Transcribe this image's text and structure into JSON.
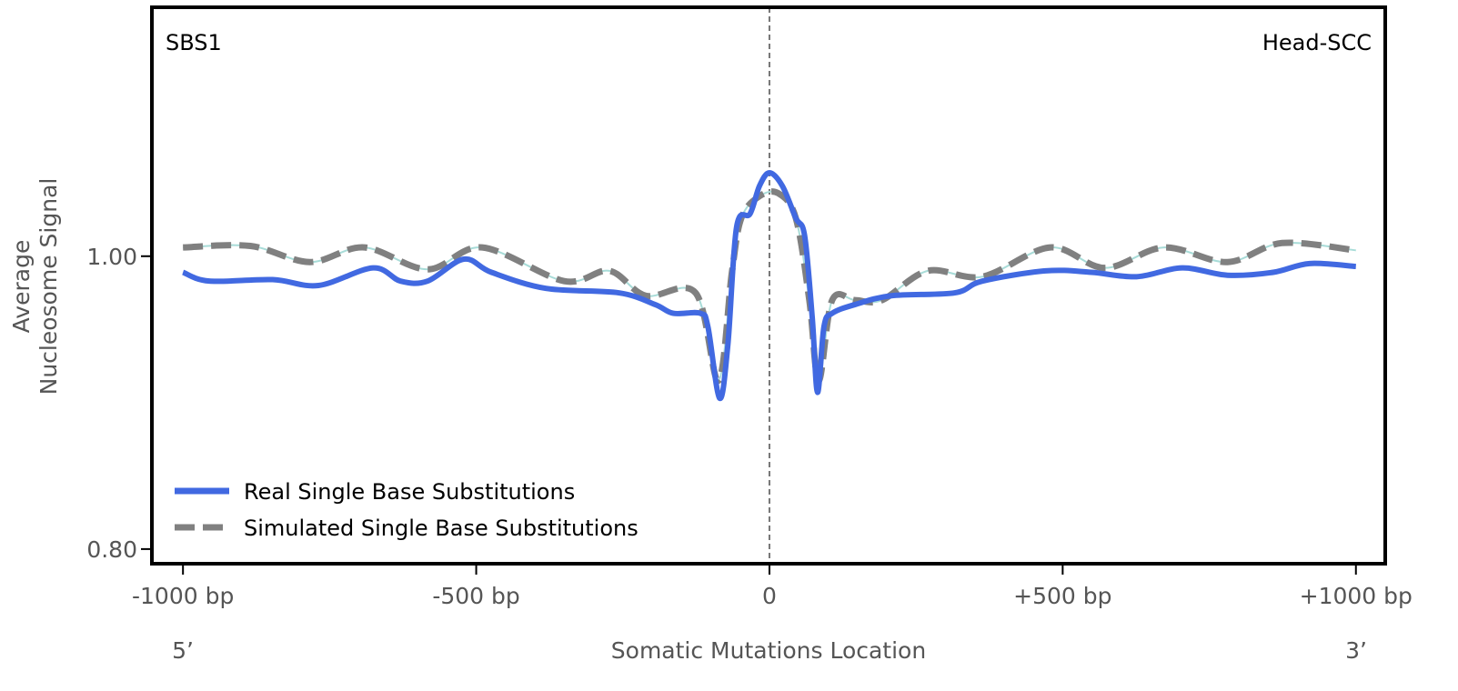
{
  "chart_data": {
    "type": "line",
    "title_left": "SBS1",
    "title_right": "Head-SCC",
    "xlabel": "Somatic Mutations Location",
    "ylabel_line1": "Average",
    "ylabel_line2": "Nucleosome Signal",
    "x_end_left": "5’",
    "x_end_right": "3’",
    "xlim": [
      -1053,
      1050
    ],
    "ylim": [
      0.79,
      1.17
    ],
    "xticks": [
      {
        "value": -1000,
        "label": "-1000 bp"
      },
      {
        "value": -500,
        "label": "-500 bp"
      },
      {
        "value": 0,
        "label": "0"
      },
      {
        "value": 500,
        "label": "+500 bp"
      },
      {
        "value": 1000,
        "label": "+1000 bp"
      }
    ],
    "yticks": [
      {
        "value": 0.8,
        "label": "0.80"
      },
      {
        "value": 1.0,
        "label": "1.00"
      }
    ],
    "vline_x": 0,
    "legend_placement": "lower-left",
    "series": [
      {
        "name": "Real Single Base Substitutions",
        "color": "#4169e1",
        "style": "solid",
        "x": [
          -1000,
          -955,
          -847,
          -769,
          -676,
          -629,
          -583,
          -521,
          -474,
          -381,
          -257,
          -195,
          -164,
          -118,
          -105,
          -85,
          -71,
          -56,
          -33,
          -17,
          0,
          22,
          45,
          60,
          73,
          82,
          93,
          107,
          146,
          208,
          316,
          363,
          471,
          549,
          626,
          704,
          781,
          859,
          921,
          1000
        ],
        "y": [
          0.989,
          0.983,
          0.984,
          0.98,
          0.992,
          0.983,
          0.983,
          0.998,
          0.989,
          0.978,
          0.975,
          0.967,
          0.961,
          0.961,
          0.952,
          0.903,
          0.939,
          1.02,
          1.029,
          1.048,
          1.057,
          1.048,
          1.026,
          1.014,
          0.958,
          0.907,
          0.952,
          0.961,
          0.967,
          0.973,
          0.975,
          0.983,
          0.99,
          0.989,
          0.986,
          0.992,
          0.987,
          0.989,
          0.995,
          0.993
        ]
      },
      {
        "name": "Simulated Single Base Substitutions",
        "color": "#808080",
        "style": "dashed",
        "x": [
          -1000,
          -885,
          -784,
          -691,
          -583,
          -490,
          -350,
          -273,
          -211,
          -126,
          -87,
          -64,
          -48,
          -17,
          15,
          45,
          68,
          84,
          107,
          146,
          192,
          270,
          363,
          479,
          572,
          673,
          781,
          874,
          1000
        ],
        "y": [
          1.006,
          1.007,
          0.996,
          1.006,
          0.991,
          1.006,
          0.983,
          0.99,
          0.973,
          0.975,
          0.915,
          0.989,
          1.026,
          1.041,
          1.043,
          1.026,
          0.97,
          0.915,
          0.97,
          0.97,
          0.97,
          0.99,
          0.986,
          1.006,
          0.992,
          1.006,
          0.996,
          1.009,
          1.004
        ]
      }
    ]
  }
}
